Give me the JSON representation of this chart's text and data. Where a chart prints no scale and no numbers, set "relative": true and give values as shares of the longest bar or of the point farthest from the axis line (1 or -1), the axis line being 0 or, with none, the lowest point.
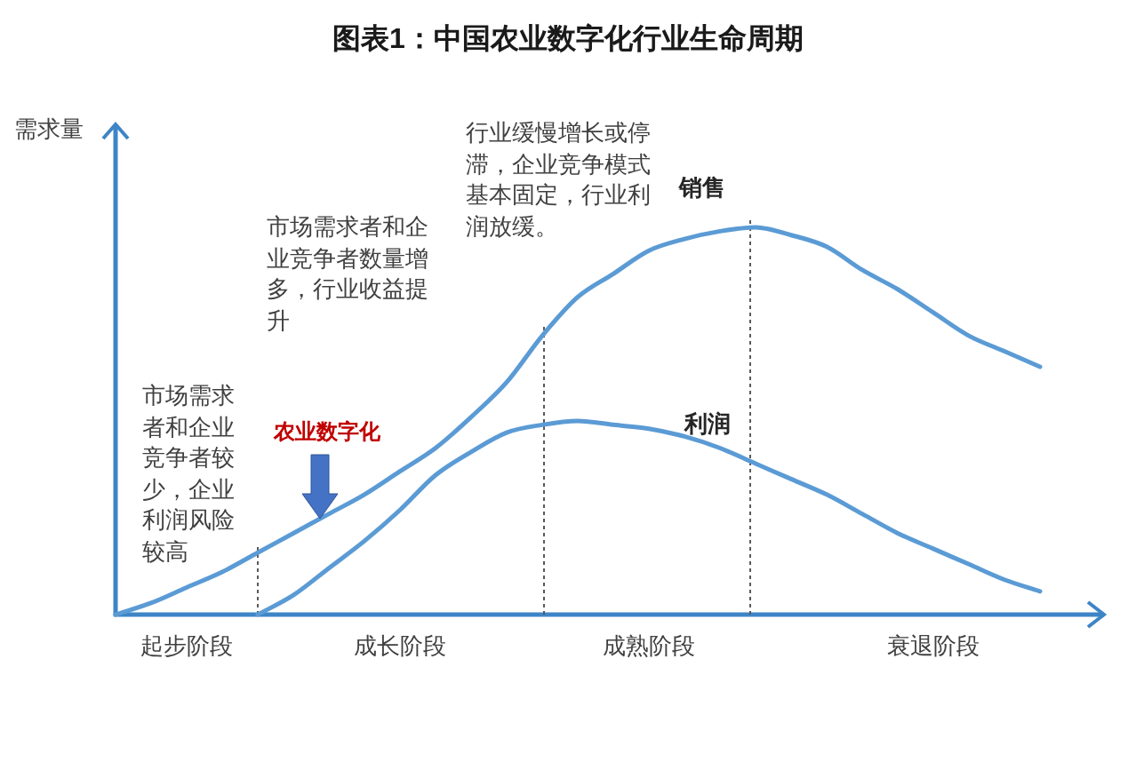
{
  "chart_data": {
    "type": "line",
    "title": "图表1：中国农业数字化行业生命周期",
    "ylabel": "需求量",
    "relative": true,
    "categories": [
      null,
      null,
      "起步阶段",
      null,
      null,
      null,
      null,
      null,
      "成长阶段",
      null,
      null,
      null,
      null,
      null,
      null,
      "成熟阶段",
      null,
      null,
      null,
      null,
      null,
      null,
      null,
      "衰退阶段",
      null,
      null,
      null
    ],
    "series": [
      {
        "name": "销售",
        "color": "#5b9bd5",
        "values": [
          0,
          0.03,
          0.07,
          0.11,
          0.16,
          0.21,
          0.26,
          0.31,
          0.37,
          0.43,
          0.51,
          0.6,
          0.72,
          0.82,
          0.88,
          0.94,
          0.97,
          0.99,
          1,
          0.98,
          0.95,
          0.89,
          0.84,
          0.78,
          0.72,
          0.68,
          0.64
        ]
      },
      {
        "name": "利润",
        "color": "#5b9bd5",
        "values": [
          null,
          null,
          null,
          null,
          0,
          0.05,
          0.12,
          0.19,
          0.27,
          0.36,
          0.42,
          0.47,
          0.49,
          0.5,
          0.49,
          0.48,
          0.46,
          0.43,
          0.39,
          0.35,
          0.31,
          0.26,
          0.21,
          0.17,
          0.13,
          0.09,
          0.06
        ]
      }
    ],
    "annotations": [
      "市场需求者和企业竞争者较少，企业利润风险较高",
      "市场需求者和企业竞争者数量增多，行业收益提升",
      "行业缓慢增长或停滞，企业竞争模式基本固定，行业利润放缓。",
      "农业数字化"
    ]
  }
}
